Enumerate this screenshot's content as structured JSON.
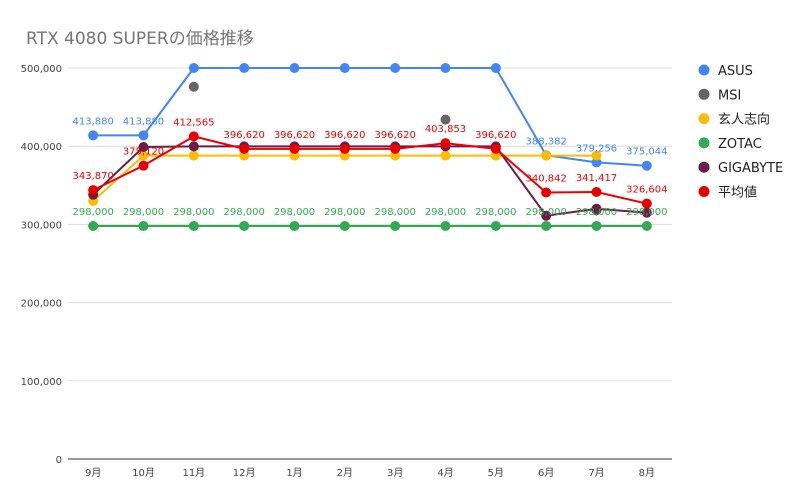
{
  "chart_data": {
    "type": "line",
    "title": "RTX 4080 SUPERの価格推移",
    "xlabel": "",
    "ylabel": "",
    "categories": [
      "9月",
      "10月",
      "11月",
      "12月",
      "1月",
      "2月",
      "3月",
      "4月",
      "5月",
      "6月",
      "7月",
      "8月"
    ],
    "ylim": [
      0,
      500000
    ],
    "yticks": [
      0,
      100000,
      200000,
      300000,
      400000,
      500000
    ],
    "ytick_labels": [
      "0",
      "100,000",
      "200,000",
      "300,000",
      "400,000",
      "500,000"
    ],
    "grid": true,
    "legend_position": "right",
    "series": [
      {
        "name": "ASUS",
        "color": "#4285f4",
        "values": [
          413880,
          413880,
          500000,
          500000,
          500000,
          500000,
          500000,
          500000,
          500000,
          388382,
          379256,
          375044
        ],
        "labels": [
          "413,880",
          "413,880",
          null,
          null,
          null,
          null,
          null,
          null,
          null,
          "388,382",
          "379,256",
          "375,044"
        ]
      },
      {
        "name": "MSI",
        "color": "#666666",
        "values": [
          null,
          null,
          476000,
          null,
          null,
          null,
          null,
          434000,
          null,
          null,
          318000,
          null
        ],
        "labels": [
          null,
          null,
          null,
          null,
          null,
          null,
          null,
          null,
          null,
          null,
          null,
          null
        ]
      },
      {
        "name": "玄人志向",
        "color": "#fbbc04",
        "values": [
          330000,
          388000,
          388000,
          388000,
          388000,
          388000,
          388000,
          388000,
          388000,
          388000,
          388000,
          null
        ],
        "labels": [
          null,
          null,
          null,
          null,
          null,
          null,
          null,
          null,
          null,
          null,
          null,
          null
        ]
      },
      {
        "name": "ZOTAC",
        "color": "#34a853",
        "values": [
          298000,
          298000,
          298000,
          298000,
          298000,
          298000,
          298000,
          298000,
          298000,
          298000,
          298000,
          298000
        ],
        "labels": [
          "298,000",
          "298,000",
          "298,000",
          "298,000",
          "298,000",
          "298,000",
          "298,000",
          "298,000",
          "298,000",
          "298,000",
          "298,000",
          "298,000"
        ]
      },
      {
        "name": "GIGABYTE",
        "color": "#6d1b47",
        "values": [
          338000,
          399000,
          399800,
          399800,
          399800,
          399800,
          399800,
          399800,
          399800,
          311000,
          320000,
          315000
        ],
        "labels": [
          null,
          null,
          null,
          null,
          null,
          null,
          null,
          null,
          null,
          null,
          null,
          null
        ]
      },
      {
        "name": "平均値",
        "color": "#ea0000",
        "values": [
          343870,
          375120,
          412565,
          396620,
          396620,
          396620,
          396620,
          403853,
          396620,
          340842,
          341417,
          326604
        ],
        "labels": [
          "343,870",
          "375,120",
          "412,565",
          "396,620",
          "396,620",
          "396,620",
          "396,620",
          "403,853",
          "396,620",
          "340,842",
          "341,417",
          "326,604"
        ]
      }
    ]
  }
}
